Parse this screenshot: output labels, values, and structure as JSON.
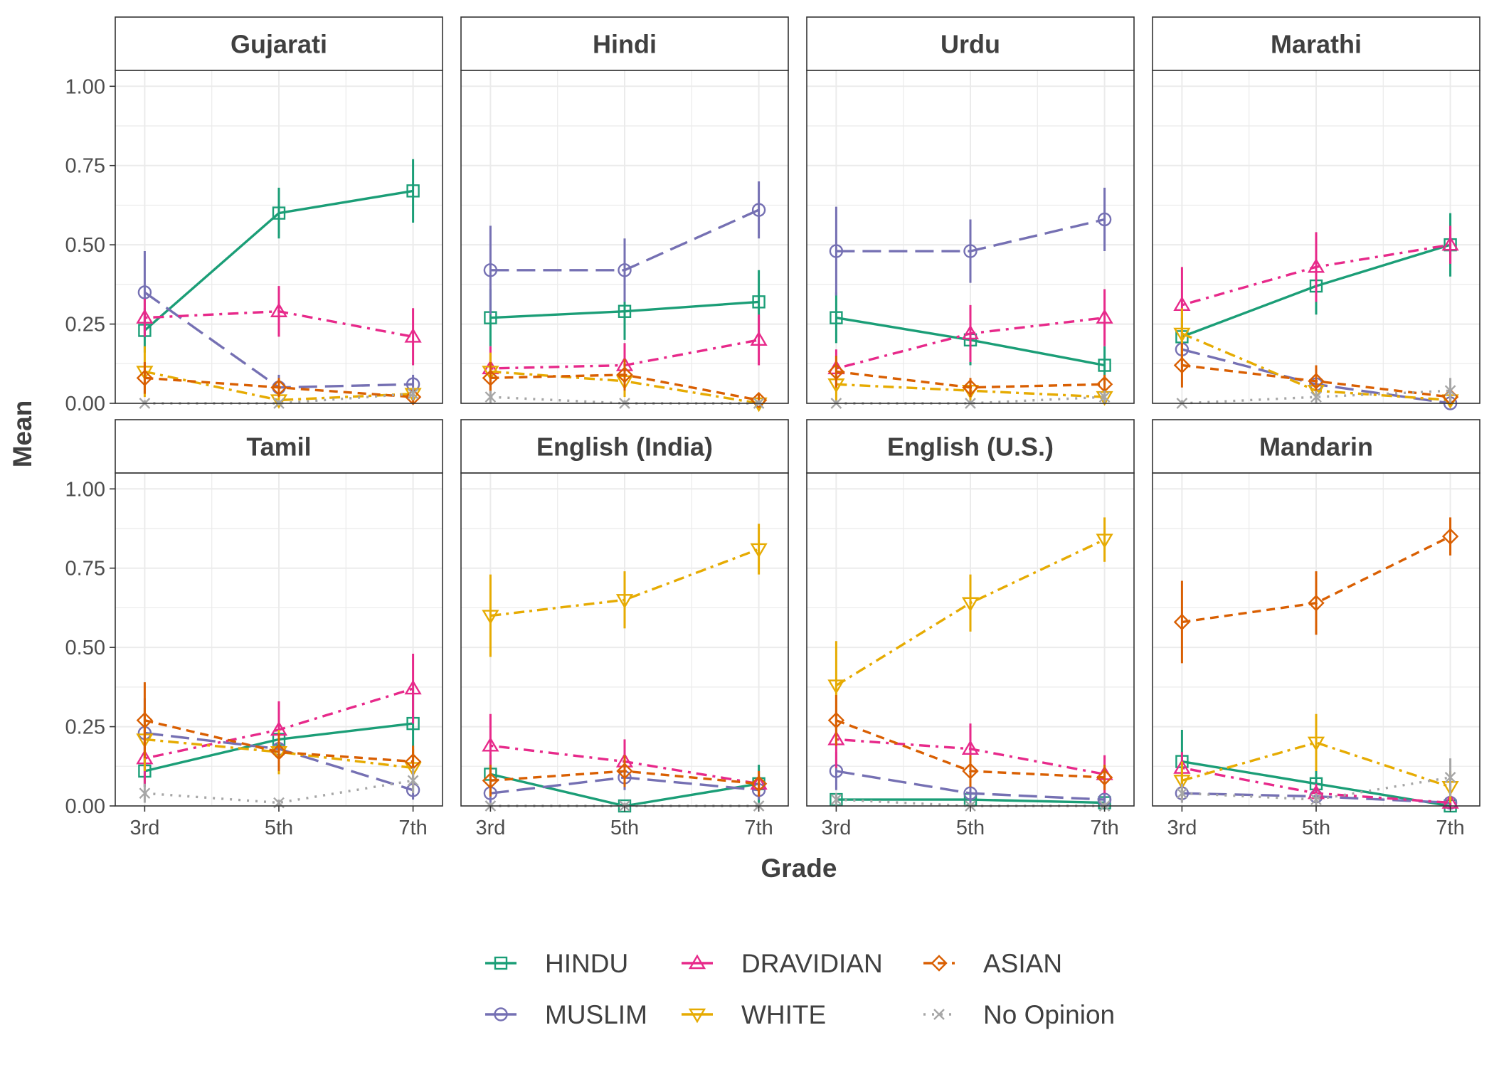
{
  "chart_data": {
    "type": "line",
    "xlabel": "Grade",
    "ylabel": "Mean",
    "x": [
      "3rd",
      "5th",
      "7th"
    ],
    "ylim": [
      0,
      1.05
    ],
    "yticks": [
      "0.00",
      "0.25",
      "0.50",
      "0.75",
      "1.00"
    ],
    "grid": true,
    "legend_position": "bottom",
    "series_styles": [
      {
        "name": "HINDU",
        "color": "#1b9e77",
        "line": "solid",
        "shape": "square"
      },
      {
        "name": "MUSLIM",
        "color": "#7570b3",
        "line": "longdash",
        "shape": "circle"
      },
      {
        "name": "DRAVIDIAN",
        "color": "#e7298a",
        "line": "dotdash",
        "shape": "triangle-up"
      },
      {
        "name": "WHITE",
        "color": "#e6ab02",
        "line": "twodash",
        "shape": "triangle-down"
      },
      {
        "name": "ASIAN",
        "color": "#d95f02",
        "line": "dashed",
        "shape": "diamond"
      },
      {
        "name": "No Opinion",
        "color": "#a6a6a6",
        "line": "dotted",
        "shape": "cross"
      }
    ],
    "panels": [
      {
        "title": "Gujarati",
        "series": [
          {
            "name": "HINDU",
            "values": [
              0.23,
              0.6,
              0.67
            ],
            "err": [
              0.07,
              0.08,
              0.1
            ]
          },
          {
            "name": "MUSLIM",
            "values": [
              0.35,
              0.05,
              0.06
            ],
            "err": [
              0.13,
              0.04,
              0.03
            ]
          },
          {
            "name": "DRAVIDIAN",
            "values": [
              0.27,
              0.29,
              0.21
            ],
            "err": [
              0.06,
              0.08,
              0.09
            ]
          },
          {
            "name": "WHITE",
            "values": [
              0.1,
              0.01,
              0.03
            ],
            "err": [
              0.08,
              0.02,
              0.02
            ]
          },
          {
            "name": "ASIAN",
            "values": [
              0.08,
              0.05,
              0.02
            ],
            "err": [
              0.05,
              0.03,
              0.02
            ]
          },
          {
            "name": "No Opinion",
            "values": [
              0.0,
              0.0,
              0.03
            ],
            "err": [
              0.01,
              0.01,
              0.02
            ]
          }
        ]
      },
      {
        "title": "Hindi",
        "series": [
          {
            "name": "HINDU",
            "values": [
              0.27,
              0.29,
              0.32
            ],
            "err": [
              0.09,
              0.09,
              0.1
            ]
          },
          {
            "name": "MUSLIM",
            "values": [
              0.42,
              0.42,
              0.61
            ],
            "err": [
              0.14,
              0.1,
              0.09
            ]
          },
          {
            "name": "DRAVIDIAN",
            "values": [
              0.11,
              0.12,
              0.2
            ],
            "err": [
              0.07,
              0.07,
              0.08
            ]
          },
          {
            "name": "WHITE",
            "values": [
              0.1,
              0.07,
              0.0
            ],
            "err": [
              0.06,
              0.05,
              0.02
            ]
          },
          {
            "name": "ASIAN",
            "values": [
              0.08,
              0.09,
              0.01
            ],
            "err": [
              0.05,
              0.05,
              0.02
            ]
          },
          {
            "name": "No Opinion",
            "values": [
              0.02,
              0.0,
              0.0
            ],
            "err": [
              0.02,
              0.01,
              0.01
            ]
          }
        ]
      },
      {
        "title": "Urdu",
        "series": [
          {
            "name": "HINDU",
            "values": [
              0.27,
              0.2,
              0.12
            ],
            "err": [
              0.08,
              0.08,
              0.06
            ]
          },
          {
            "name": "MUSLIM",
            "values": [
              0.48,
              0.48,
              0.58
            ],
            "err": [
              0.14,
              0.1,
              0.1
            ]
          },
          {
            "name": "DRAVIDIAN",
            "values": [
              0.11,
              0.22,
              0.27
            ],
            "err": [
              0.06,
              0.09,
              0.09
            ]
          },
          {
            "name": "WHITE",
            "values": [
              0.06,
              0.04,
              0.02
            ],
            "err": [
              0.05,
              0.03,
              0.02
            ]
          },
          {
            "name": "ASIAN",
            "values": [
              0.1,
              0.05,
              0.06
            ],
            "err": [
              0.05,
              0.03,
              0.03
            ]
          },
          {
            "name": "No Opinion",
            "values": [
              0.0,
              0.0,
              0.02
            ],
            "err": [
              0.01,
              0.01,
              0.02
            ]
          }
        ]
      },
      {
        "title": "Marathi",
        "series": [
          {
            "name": "HINDU",
            "values": [
              0.21,
              0.37,
              0.5
            ],
            "err": [
              0.06,
              0.09,
              0.1
            ]
          },
          {
            "name": "MUSLIM",
            "values": [
              0.17,
              0.06,
              0.0
            ],
            "err": [
              0.06,
              0.04,
              0.01
            ]
          },
          {
            "name": "DRAVIDIAN",
            "values": [
              0.31,
              0.43,
              0.5
            ],
            "err": [
              0.12,
              0.11,
              0.06
            ]
          },
          {
            "name": "WHITE",
            "values": [
              0.22,
              0.04,
              0.01
            ],
            "err": [
              0.08,
              0.03,
              0.02
            ]
          },
          {
            "name": "ASIAN",
            "values": [
              0.12,
              0.07,
              0.02
            ],
            "err": [
              0.07,
              0.05,
              0.02
            ]
          },
          {
            "name": "No Opinion",
            "values": [
              0.0,
              0.02,
              0.04
            ],
            "err": [
              0.01,
              0.02,
              0.04
            ]
          }
        ]
      },
      {
        "title": "Tamil",
        "series": [
          {
            "name": "HINDU",
            "values": [
              0.11,
              0.21,
              0.26
            ],
            "err": [
              0.05,
              0.07,
              0.11
            ]
          },
          {
            "name": "MUSLIM",
            "values": [
              0.23,
              0.18,
              0.05
            ],
            "err": [
              0.11,
              0.06,
              0.03
            ]
          },
          {
            "name": "DRAVIDIAN",
            "values": [
              0.15,
              0.24,
              0.37
            ],
            "err": [
              0.09,
              0.09,
              0.11
            ]
          },
          {
            "name": "WHITE",
            "values": [
              0.21,
              0.17,
              0.12
            ],
            "err": [
              0.1,
              0.07,
              0.06
            ]
          },
          {
            "name": "ASIAN",
            "values": [
              0.27,
              0.17,
              0.14
            ],
            "err": [
              0.12,
              0.06,
              0.05
            ]
          },
          {
            "name": "No Opinion",
            "values": [
              0.04,
              0.01,
              0.08
            ],
            "err": [
              0.03,
              0.01,
              0.04
            ]
          }
        ]
      },
      {
        "title": "English (India)",
        "series": [
          {
            "name": "HINDU",
            "values": [
              0.1,
              0.0,
              0.07
            ],
            "err": [
              0.06,
              0.01,
              0.06
            ]
          },
          {
            "name": "MUSLIM",
            "values": [
              0.04,
              0.09,
              0.05
            ],
            "err": [
              0.03,
              0.04,
              0.03
            ]
          },
          {
            "name": "DRAVIDIAN",
            "values": [
              0.19,
              0.14,
              0.07
            ],
            "err": [
              0.1,
              0.07,
              0.04
            ]
          },
          {
            "name": "WHITE",
            "values": [
              0.6,
              0.65,
              0.81
            ],
            "err": [
              0.13,
              0.09,
              0.08
            ]
          },
          {
            "name": "ASIAN",
            "values": [
              0.08,
              0.11,
              0.07
            ],
            "err": [
              0.05,
              0.05,
              0.04
            ]
          },
          {
            "name": "No Opinion",
            "values": [
              0.0,
              0.0,
              0.0
            ],
            "err": [
              0.01,
              0.01,
              0.01
            ]
          }
        ]
      },
      {
        "title": "English (U.S.)",
        "series": [
          {
            "name": "HINDU",
            "values": [
              0.02,
              0.02,
              0.01
            ],
            "err": [
              0.02,
              0.02,
              0.02
            ]
          },
          {
            "name": "MUSLIM",
            "values": [
              0.11,
              0.04,
              0.02
            ],
            "err": [
              0.06,
              0.03,
              0.02
            ]
          },
          {
            "name": "DRAVIDIAN",
            "values": [
              0.21,
              0.18,
              0.1
            ],
            "err": [
              0.09,
              0.08,
              0.06
            ]
          },
          {
            "name": "WHITE",
            "values": [
              0.38,
              0.64,
              0.84
            ],
            "err": [
              0.14,
              0.09,
              0.07
            ]
          },
          {
            "name": "ASIAN",
            "values": [
              0.27,
              0.11,
              0.09
            ],
            "err": [
              0.08,
              0.05,
              0.04
            ]
          },
          {
            "name": "No Opinion",
            "values": [
              0.02,
              0.0,
              0.0
            ],
            "err": [
              0.02,
              0.01,
              0.01
            ]
          }
        ]
      },
      {
        "title": "Mandarin",
        "series": [
          {
            "name": "HINDU",
            "values": [
              0.14,
              0.07,
              0.0
            ],
            "err": [
              0.1,
              0.04,
              0.01
            ]
          },
          {
            "name": "MUSLIM",
            "values": [
              0.04,
              0.03,
              0.01
            ],
            "err": [
              0.03,
              0.02,
              0.02
            ]
          },
          {
            "name": "DRAVIDIAN",
            "values": [
              0.12,
              0.04,
              0.01
            ],
            "err": [
              0.05,
              0.03,
              0.02
            ]
          },
          {
            "name": "WHITE",
            "values": [
              0.08,
              0.2,
              0.06
            ],
            "err": [
              0.06,
              0.09,
              0.05
            ]
          },
          {
            "name": "ASIAN",
            "values": [
              0.58,
              0.64,
              0.85
            ],
            "err": [
              0.13,
              0.1,
              0.06
            ]
          },
          {
            "name": "No Opinion",
            "values": [
              0.04,
              0.02,
              0.09
            ],
            "err": [
              0.03,
              0.02,
              0.06
            ]
          }
        ]
      }
    ]
  }
}
